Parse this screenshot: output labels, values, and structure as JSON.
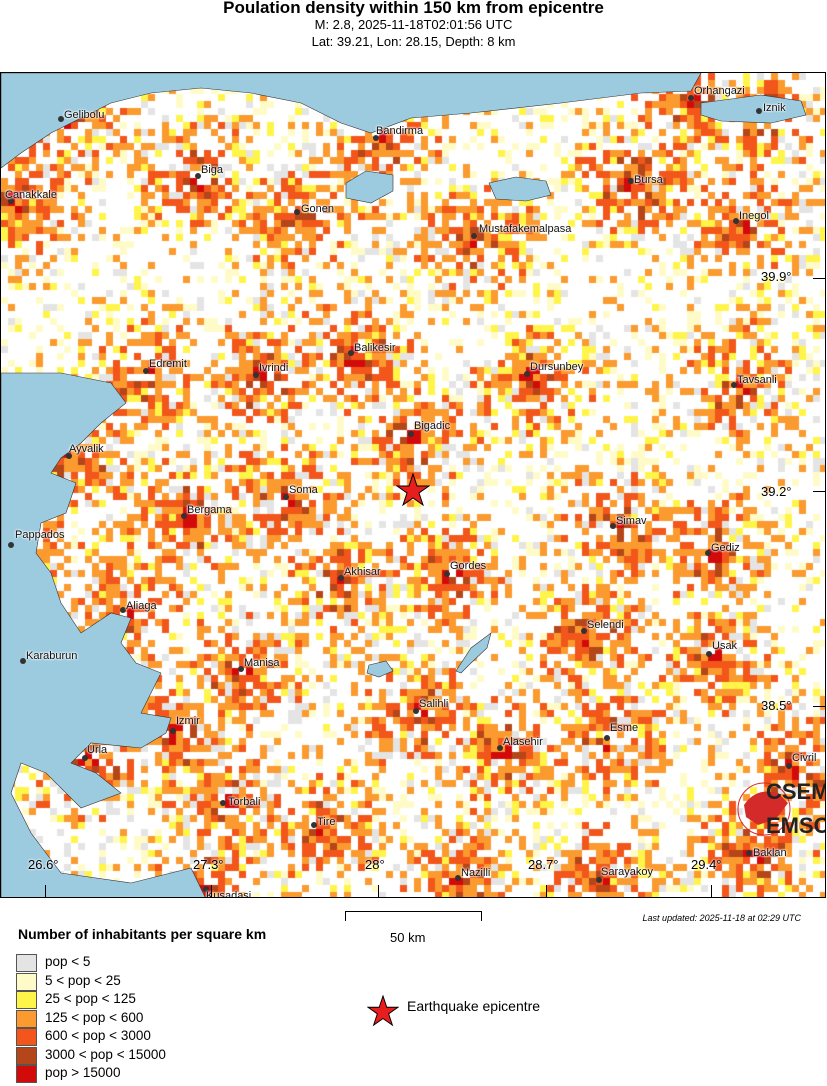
{
  "header": {
    "title": "Poulation density within 150 km from epicentre",
    "event_line": "M: 2.8,  2025-11-18T02:01:56 UTC",
    "location_line": "Lat: 39.21, Lon: 28.15, Depth: 8 km"
  },
  "map": {
    "lon_ticks": [
      "26.6°",
      "27.3°",
      "28°",
      "28.7°",
      "29.4°"
    ],
    "lat_ticks": [
      "39.9°",
      "39.2°",
      "38.5°"
    ],
    "epicentre": {
      "lat": 39.21,
      "lon": 28.15,
      "icon": "red-star-icon",
      "color": "#e81e1e"
    },
    "water_color": "#9ccbe0",
    "cities": [
      "Gelibolu",
      "Canakkale",
      "Biga",
      "Bandirma",
      "Orhangazi",
      "Iznik",
      "Bursa",
      "Gonen",
      "Mustafakemalpasa",
      "Inegol",
      "Balikesir",
      "Edremit",
      "Ivrindi",
      "Dursunbey",
      "Tavsanli",
      "Bigadic",
      "Ayvalik",
      "Soma",
      "Bergama",
      "Simav",
      "Pappados",
      "Gediz",
      "Akhisar",
      "Gordes",
      "Aliaga",
      "Selendi",
      "Usak",
      "Karaburun",
      "Manisa",
      "Salihli",
      "Izmir",
      "Esme",
      "Alasehir",
      "Urla",
      "Civril",
      "Torbali",
      "Tire",
      "Nazilli",
      "Sarayakoy",
      "Kusadasi",
      "Baklan"
    ],
    "logo_text": [
      "CSEM",
      "EMSC"
    ]
  },
  "footer": {
    "last_updated": "Last updated: 2025-11-18 at 02:29 UTC",
    "scale_label": "50 km",
    "legend_title": "Number of inhabitants per square km",
    "legend": [
      {
        "label": "pop < 5",
        "color": "#e4e4e4"
      },
      {
        "label": "5 < pop < 25",
        "color": "#fffbc8"
      },
      {
        "label": "25 < pop < 125",
        "color": "#fff44a"
      },
      {
        "label": "125 < pop < 600",
        "color": "#fb9a2e"
      },
      {
        "label": "600 < pop < 3000",
        "color": "#f2561a"
      },
      {
        "label": "3000 < pop < 15000",
        "color": "#b4461a"
      },
      {
        "label": "pop > 15000",
        "color": "#d20a0a"
      }
    ],
    "epicentre_label": "Earthquake epicentre"
  }
}
